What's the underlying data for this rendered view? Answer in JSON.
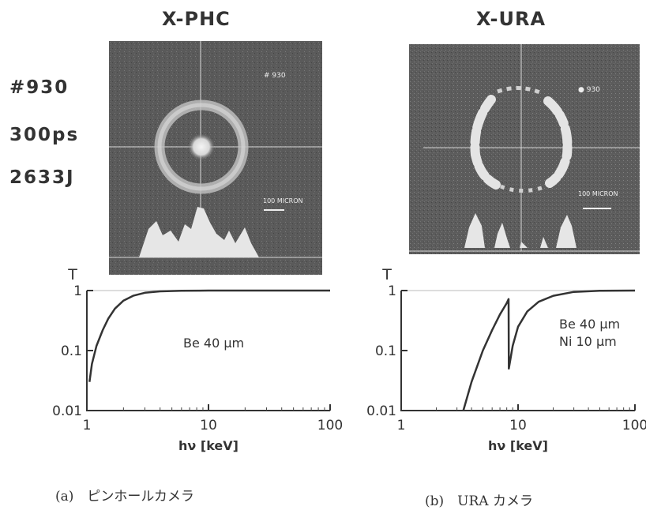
{
  "figure": {
    "shot": "#930",
    "pulse": "300ps",
    "energy": "2633J",
    "left": {
      "title": "X-PHC",
      "image_label": "# 930",
      "scale_label": "100 MICRON",
      "caption": "(a)　ピンホールカメラ"
    },
    "right": {
      "title": "X-URA",
      "image_label": "● 930",
      "scale_label": "100 MICRON",
      "caption": "(b)　URA カメラ"
    }
  },
  "chart_data": [
    {
      "type": "line",
      "ylabel": "T",
      "xlabel": "hν [keV]",
      "x_scale": "log",
      "y_scale": "log",
      "xlim": [
        1,
        100
      ],
      "ylim": [
        0.01,
        1
      ],
      "x_ticks": [
        "1",
        "10",
        "100"
      ],
      "y_ticks": [
        "1",
        "0.1",
        "0.01"
      ],
      "annotations": [
        "Be 40 μm"
      ],
      "series": [
        {
          "x": [
            1.05,
            1.1,
            1.2,
            1.35,
            1.5,
            1.7,
            2.0,
            2.4,
            3.0,
            4.0,
            6.0,
            10,
            30,
            100
          ],
          "y": [
            0.03,
            0.06,
            0.12,
            0.22,
            0.34,
            0.5,
            0.68,
            0.82,
            0.92,
            0.97,
            0.99,
            1.0,
            1.0,
            1.0
          ]
        }
      ]
    },
    {
      "type": "line",
      "ylabel": "T",
      "xlabel": "hν [keV]",
      "x_scale": "log",
      "y_scale": "log",
      "xlim": [
        1,
        100
      ],
      "ylim": [
        0.01,
        1
      ],
      "x_ticks": [
        "1",
        "10",
        "100"
      ],
      "y_ticks": [
        "1",
        "0.1",
        "0.01"
      ],
      "annotations": [
        "Be 40 μm",
        "Ni 10 μm"
      ],
      "series": [
        {
          "x": [
            3.4,
            4.0,
            5.0,
            6.0,
            7.0,
            8.0,
            8.3,
            8.33,
            9.0,
            10,
            12,
            15,
            20,
            30,
            50,
            100
          ],
          "y": [
            0.01,
            0.03,
            0.1,
            0.22,
            0.4,
            0.62,
            0.72,
            0.05,
            0.12,
            0.25,
            0.45,
            0.65,
            0.82,
            0.95,
            0.99,
            1.0
          ]
        }
      ]
    }
  ]
}
